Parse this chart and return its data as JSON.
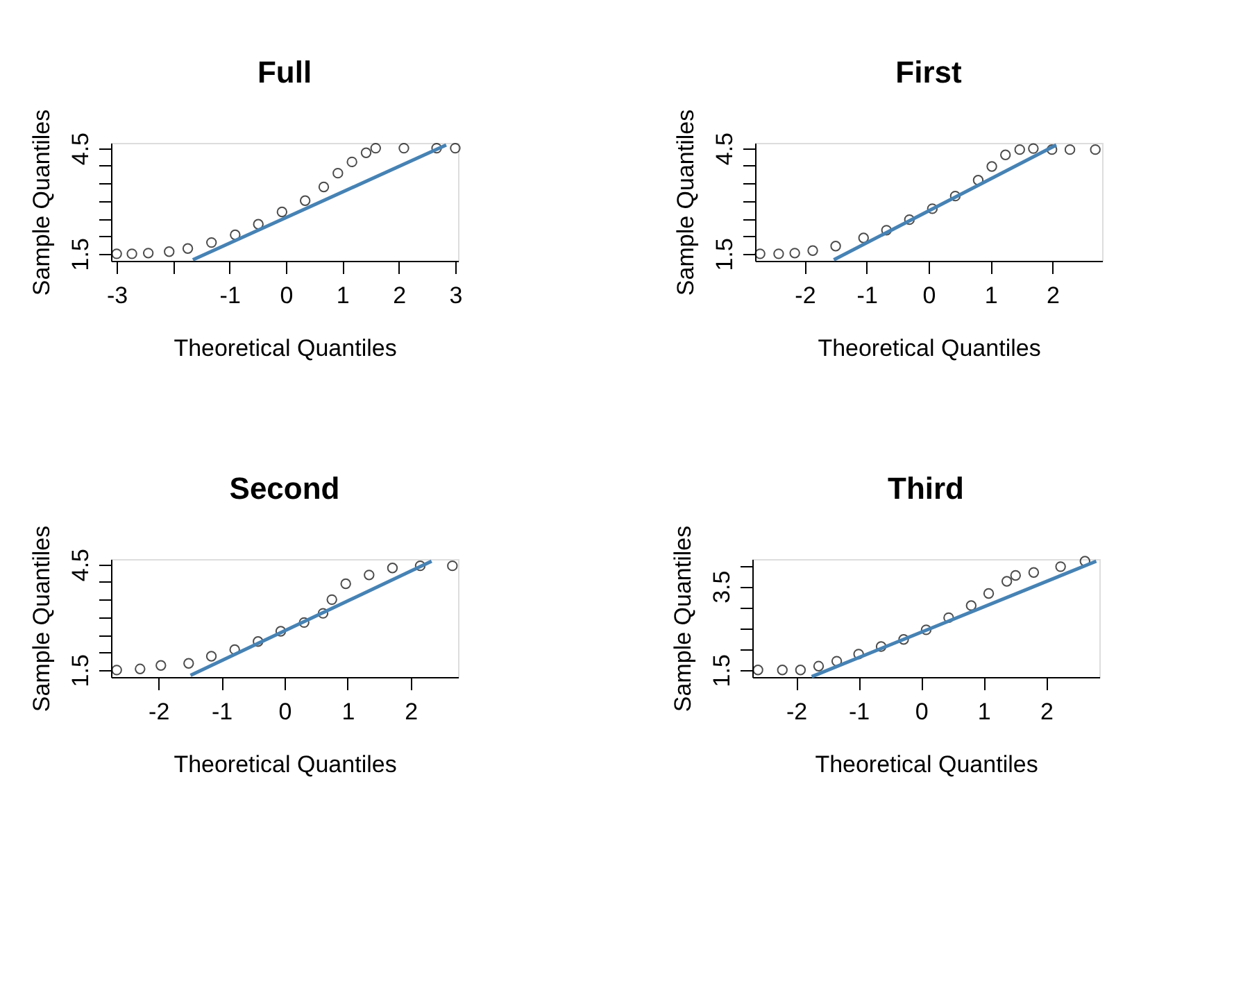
{
  "chart_data": [
    {
      "type": "scatter",
      "title": "Full",
      "xlabel": "Theoretical Quantiles",
      "ylabel": "Sample Quantiles",
      "grid": false,
      "legend": false,
      "xlim": [
        -3.1,
        3.05
      ],
      "xticks": [
        -3,
        {
          "value": -2,
          "label": null
        },
        -1,
        0,
        1,
        2,
        3
      ],
      "ylim": [
        1.3,
        4.65
      ],
      "yticks": [
        {
          "value": 1.5,
          "label": "1.5"
        },
        {
          "value": 2,
          "label": null
        },
        {
          "value": 2.5,
          "label": null
        },
        {
          "value": 3,
          "label": null
        },
        {
          "value": 3.5,
          "label": null
        },
        {
          "value": 4,
          "label": null
        },
        {
          "value": 4.5,
          "label": "4.5"
        }
      ],
      "series": [
        {
          "marker": "circle",
          "color": "#000000",
          "x": [
            -3.0,
            -2.73,
            -2.44,
            -2.07,
            -1.74,
            -1.32,
            -0.9,
            -0.49,
            -0.07,
            0.34,
            0.67,
            0.92,
            1.17,
            1.42,
            1.59,
            2.09,
            2.67,
            3.0
          ],
          "values": [
            1.5,
            1.5,
            1.52,
            1.56,
            1.65,
            1.82,
            2.04,
            2.34,
            2.69,
            3.01,
            3.4,
            3.79,
            4.11,
            4.37,
            4.5,
            4.5,
            4.5,
            4.5
          ]
        },
        {
          "type": "line",
          "color": "#4682b4",
          "x": [
            -1.65,
            2.84
          ],
          "values": [
            1.33,
            4.59
          ]
        }
      ]
    },
    {
      "type": "scatter",
      "title": "First",
      "xlabel": "Theoretical Quantiles",
      "ylabel": "Sample Quantiles",
      "grid": false,
      "legend": false,
      "xlim": [
        -2.8,
        2.8
      ],
      "xticks": [
        -2,
        -1,
        0,
        1,
        2
      ],
      "ylim": [
        1.3,
        4.65
      ],
      "yticks": [
        {
          "value": 1.5,
          "label": "1.5"
        },
        {
          "value": 2,
          "label": null
        },
        {
          "value": 2.5,
          "label": null
        },
        {
          "value": 3,
          "label": null
        },
        {
          "value": 3.5,
          "label": null
        },
        {
          "value": 4,
          "label": null
        },
        {
          "value": 4.5,
          "label": "4.5"
        }
      ],
      "series": [
        {
          "marker": "circle",
          "color": "#000000",
          "x": [
            -2.72,
            -2.42,
            -2.16,
            -1.87,
            -1.5,
            -1.05,
            -0.68,
            -0.31,
            0.06,
            0.43,
            0.8,
            1.02,
            1.24,
            1.47,
            1.69,
            1.99,
            2.28,
            2.69
          ],
          "values": [
            1.5,
            1.5,
            1.52,
            1.59,
            1.72,
            1.95,
            2.17,
            2.47,
            2.78,
            3.14,
            3.59,
            3.98,
            4.31,
            4.46,
            4.49,
            4.46,
            4.46,
            4.46
          ]
        },
        {
          "type": "line",
          "color": "#4682b4",
          "x": [
            -1.53,
            2.06
          ],
          "values": [
            1.33,
            4.59
          ]
        }
      ]
    },
    {
      "type": "scatter",
      "title": "Second",
      "xlabel": "Theoretical Quantiles",
      "ylabel": "Sample Quantiles",
      "grid": false,
      "legend": false,
      "xlim": [
        -2.75,
        2.75
      ],
      "xticks": [
        -2,
        -1,
        0,
        1,
        2
      ],
      "ylim": [
        1.3,
        4.65
      ],
      "yticks": [
        {
          "value": 1.5,
          "label": "1.5"
        },
        {
          "value": 2,
          "label": null
        },
        {
          "value": 2.5,
          "label": null
        },
        {
          "value": 3,
          "label": null
        },
        {
          "value": 3.5,
          "label": null
        },
        {
          "value": 4,
          "label": null
        },
        {
          "value": 4.5,
          "label": "4.5"
        }
      ],
      "series": [
        {
          "marker": "circle",
          "color": "#000000",
          "x": [
            -2.66,
            -2.29,
            -1.96,
            -1.52,
            -1.16,
            -0.79,
            -0.42,
            -0.06,
            0.31,
            0.61,
            0.75,
            0.97,
            1.34,
            1.71,
            2.15,
            2.66
          ],
          "values": [
            1.5,
            1.53,
            1.63,
            1.69,
            1.89,
            2.08,
            2.31,
            2.6,
            2.85,
            3.11,
            3.5,
            3.95,
            4.2,
            4.4,
            4.46,
            4.46
          ]
        },
        {
          "type": "line",
          "color": "#4682b4",
          "x": [
            -1.49,
            2.33
          ],
          "values": [
            1.35,
            4.59
          ]
        }
      ]
    },
    {
      "type": "scatter",
      "title": "Third",
      "xlabel": "Theoretical Quantiles",
      "ylabel": "Sample Quantiles",
      "grid": false,
      "legend": false,
      "xlim": [
        -2.7,
        2.85
      ],
      "xticks": [
        -2,
        -1,
        0,
        1,
        2
      ],
      "ylim": [
        1.33,
        4.15
      ],
      "yticks": [
        {
          "value": 1.5,
          "label": "1.5"
        },
        {
          "value": 2,
          "label": null
        },
        {
          "value": 2.5,
          "label": null
        },
        {
          "value": 3,
          "label": null
        },
        {
          "value": 3.5,
          "label": "3.5"
        },
        {
          "value": 4,
          "label": null
        }
      ],
      "series": [
        {
          "marker": "circle",
          "color": "#000000",
          "x": [
            -2.61,
            -2.22,
            -1.93,
            -1.64,
            -1.35,
            -1.0,
            -0.64,
            -0.28,
            0.08,
            0.44,
            0.8,
            1.08,
            1.37,
            1.51,
            1.8,
            2.23,
            2.62
          ],
          "values": [
            1.5,
            1.5,
            1.5,
            1.59,
            1.71,
            1.88,
            2.06,
            2.23,
            2.46,
            2.75,
            3.04,
            3.33,
            3.62,
            3.76,
            3.83,
            3.97,
            4.1
          ]
        },
        {
          "type": "line",
          "color": "#4682b4",
          "x": [
            -1.75,
            2.8
          ],
          "values": [
            1.34,
            4.1
          ]
        }
      ]
    }
  ]
}
